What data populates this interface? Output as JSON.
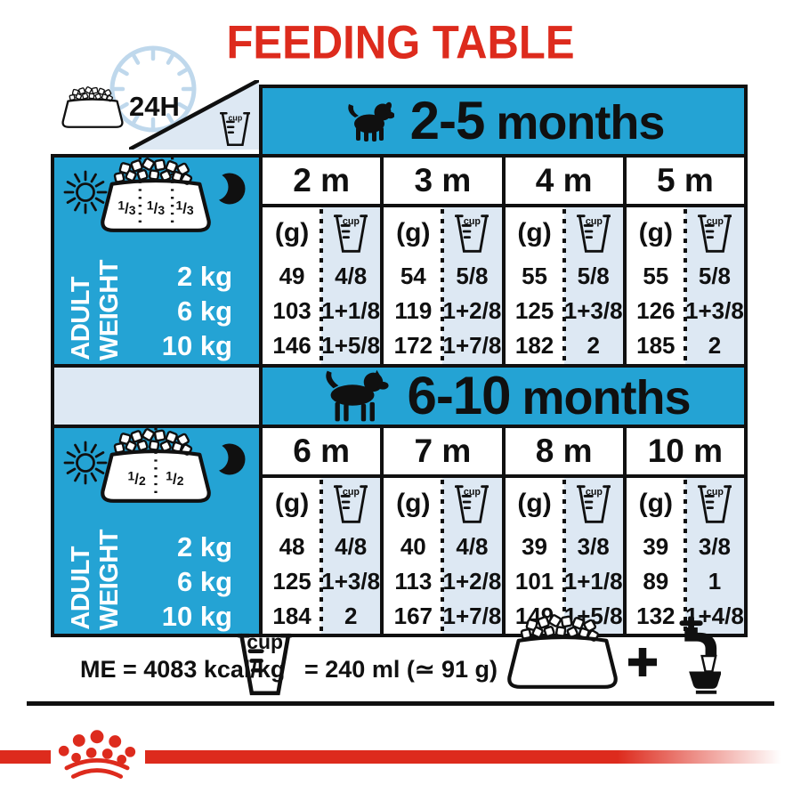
{
  "title": "FEEDING TABLE",
  "colors": {
    "red": "#dd2b1d",
    "blue": "#24a3d4",
    "light_blue": "#dde8f3",
    "ink": "#101010"
  },
  "header": {
    "hours_label": "24H"
  },
  "units": {
    "grams": "(g)",
    "cup": "cup"
  },
  "left_panel": {
    "line1": "ADULT",
    "line2": "WEIGHT",
    "weights": [
      "2 kg",
      "6 kg",
      "10 kg"
    ]
  },
  "sections": [
    {
      "age_range": "2-5",
      "age_unit": "months",
      "dog_icon": "puppy-icon",
      "bowl_fractions": [
        "1/3",
        "1/3",
        "1/3"
      ],
      "columns": [
        {
          "month": "2 m",
          "grams": [
            "49",
            "103",
            "146"
          ],
          "cups": [
            "4/8",
            "1+1/8",
            "1+5/8"
          ]
        },
        {
          "month": "3 m",
          "grams": [
            "54",
            "119",
            "172"
          ],
          "cups": [
            "5/8",
            "1+2/8",
            "1+7/8"
          ]
        },
        {
          "month": "4 m",
          "grams": [
            "55",
            "125",
            "182"
          ],
          "cups": [
            "5/8",
            "1+3/8",
            "2"
          ]
        },
        {
          "month": "5 m",
          "grams": [
            "55",
            "126",
            "185"
          ],
          "cups": [
            "5/8",
            "1+3/8",
            "2"
          ]
        }
      ]
    },
    {
      "age_range": "6-10",
      "age_unit": "months",
      "dog_icon": "adult-dog-icon",
      "bowl_fractions": [
        "1/2",
        "1/2"
      ],
      "columns": [
        {
          "month": "6 m",
          "grams": [
            "48",
            "125",
            "184"
          ],
          "cups": [
            "4/8",
            "1+3/8",
            "2"
          ]
        },
        {
          "month": "7 m",
          "grams": [
            "40",
            "113",
            "167"
          ],
          "cups": [
            "4/8",
            "1+2/8",
            "1+7/8"
          ]
        },
        {
          "month": "8 m",
          "grams": [
            "39",
            "101",
            "149"
          ],
          "cups": [
            "3/8",
            "1+1/8",
            "1+5/8"
          ]
        },
        {
          "month": "10 m",
          "grams": [
            "39",
            "89",
            "132"
          ],
          "cups": [
            "3/8",
            "1",
            "1+4/8"
          ]
        }
      ]
    }
  ],
  "footer": {
    "me_label": "ME = 4083 kcal/kg",
    "cup_equiv": "= 240 ml (≃ 91 g)"
  },
  "chart_data": {
    "type": "table",
    "title": "FEEDING TABLE",
    "row_header": "ADULT WEIGHT",
    "rows": [
      "2 kg",
      "6 kg",
      "10 kg"
    ],
    "sections": [
      {
        "label": "2-5 months",
        "columns": [
          "2 m",
          "3 m",
          "4 m",
          "5 m"
        ],
        "grams_by_column": [
          [
            49,
            103,
            146
          ],
          [
            54,
            119,
            172
          ],
          [
            55,
            125,
            182
          ],
          [
            55,
            126,
            185
          ]
        ],
        "cups_by_column": [
          [
            "4/8",
            "1+1/8",
            "1+5/8"
          ],
          [
            "5/8",
            "1+2/8",
            "1+7/8"
          ],
          [
            "5/8",
            "1+3/8",
            "2"
          ],
          [
            "5/8",
            "1+3/8",
            "2"
          ]
        ],
        "daily_meal_split": "1/3 + 1/3 + 1/3"
      },
      {
        "label": "6-10 months",
        "columns": [
          "6 m",
          "7 m",
          "8 m",
          "10 m"
        ],
        "grams_by_column": [
          [
            48,
            125,
            184
          ],
          [
            40,
            113,
            167
          ],
          [
            39,
            101,
            149
          ],
          [
            39,
            89,
            132
          ]
        ],
        "cups_by_column": [
          [
            "4/8",
            "1+3/8",
            "2"
          ],
          [
            "4/8",
            "1+2/8",
            "1+7/8"
          ],
          [
            "3/8",
            "1+1/8",
            "1+5/8"
          ],
          [
            "3/8",
            "1",
            "1+4/8"
          ]
        ],
        "daily_meal_split": "1/2 + 1/2"
      }
    ],
    "notes": [
      "24H",
      "ME = 4083 kcal/kg",
      "1 cup = 240 ml (≃ 91 g)"
    ]
  }
}
